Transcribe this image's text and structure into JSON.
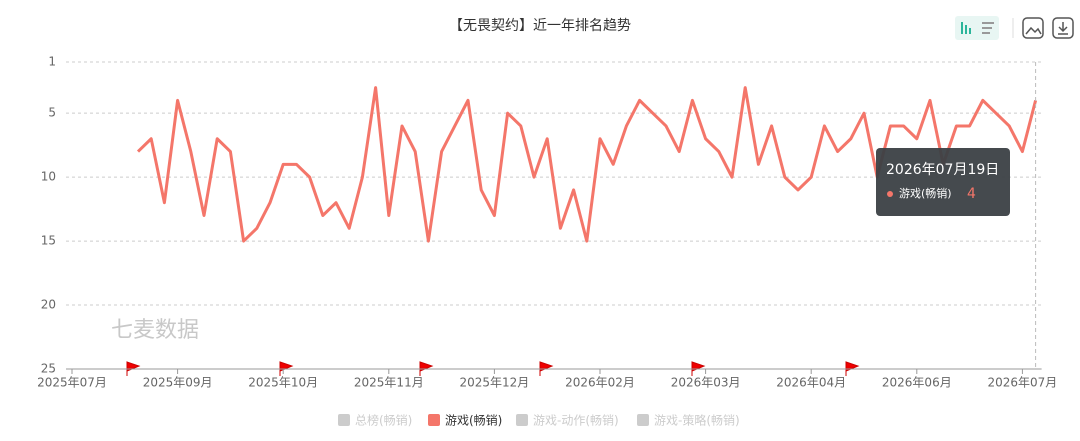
{
  "chart_data": {
    "type": "line",
    "title": "【无畏契约】近一年排名趋势",
    "x": [
      "2025年07月19日",
      "2025年07月24日",
      "2025年07月29日",
      "2025年08月03日",
      "2025年08月08日",
      "2025年08月13日",
      "2025年08月18日",
      "2025年08月23日",
      "2025年08月28日",
      "2025年09月02日",
      "2025年09月07日",
      "2025年09月12日",
      "2025年09月17日",
      "2025年09月22日",
      "2025年09月27日",
      "2025年10月02日",
      "2025年10月07日",
      "2025年10月12日",
      "2025年10月17日",
      "2025年10月22日",
      "2025年10月27日",
      "2025年11月01日",
      "2025年11月06日",
      "2025年11月11日",
      "2025年11月16日",
      "2025年11月21日",
      "2025年11月26日",
      "2025年12月01日",
      "2025年12月06日",
      "2025年12月11日",
      "2025年12月16日",
      "2025年12月21日",
      "2025年12月26日",
      "2025年12月31日",
      "2026年01月05日",
      "2026年01月10日",
      "2026年01月15日",
      "2026年01月20日",
      "2026年01月25日",
      "2026年01月30日",
      "2026年02月04日",
      "2026年02月09日",
      "2026年02月14日",
      "2026年02月19日",
      "2026年02月24日",
      "2026年03月01日",
      "2026年03月06日",
      "2026年03月11日",
      "2026年03月16日",
      "2026年03月21日",
      "2026年03月26日",
      "2026年03月31日",
      "2026年04月05日",
      "2026年04月10日",
      "2026年04月15日",
      "2026年04月20日",
      "2026年04月25日",
      "2026年04月30日",
      "2026年05月05日",
      "2026年05月10日",
      "2026年05月15日",
      "2026年05月20日",
      "2026年05月25日",
      "2026年05月30日",
      "2026年06月04日",
      "2026年06月09日",
      "2026年06月14日",
      "2026年06月19日",
      "2026年06月24日",
      "2026年06月29日",
      "2026年07月04日",
      "2026年07月09日",
      "2026年07月14日",
      "2026年07月19日"
    ],
    "series": [
      {
        "name": "游戏(畅销)",
        "color": "#f4766a",
        "values": [
          null,
          null,
          null,
          null,
          null,
          8,
          7,
          12,
          4,
          8,
          13,
          7,
          8,
          15,
          14,
          12,
          9,
          9,
          10,
          13,
          12,
          14,
          10,
          3,
          13,
          6,
          8,
          15,
          8,
          6,
          4,
          11,
          13,
          5,
          6,
          10,
          7,
          14,
          11,
          15,
          7,
          9,
          6,
          4,
          5,
          6,
          8,
          4,
          7,
          8,
          10,
          3,
          9,
          6,
          10,
          11,
          10,
          6,
          8,
          7,
          5,
          10,
          6,
          6,
          7,
          4,
          9,
          6,
          6,
          4,
          5,
          6,
          8,
          4
        ]
      }
    ],
    "legend_items": [
      {
        "name": "总榜(畅销)",
        "color": "#cccccc"
      },
      {
        "name": "游戏(畅销)",
        "color": "#f4766a"
      },
      {
        "name": "游戏-动作(畅销)",
        "color": "#cccccc"
      },
      {
        "name": "游戏-策略(畅销)",
        "color": "#cccccc"
      }
    ],
    "ylim": [
      1,
      25
    ],
    "inverse": true,
    "yticks": [
      1,
      5,
      10,
      15,
      20,
      25
    ],
    "grid": true,
    "xticks": [
      {
        "value": "2025年07月19日",
        "label": "2025年07月"
      },
      {
        "value": "2025年08月28日",
        "label": "2025年09月"
      },
      {
        "value": "2025年10月07日",
        "label": "2025年10月"
      },
      {
        "value": "2025年11月16日",
        "label": "2025年11月"
      },
      {
        "value": "2025年12月26日",
        "label": "2025年12月"
      },
      {
        "value": "2026年02月04日",
        "label": "2026年02月"
      },
      {
        "value": "2026年03月16日",
        "label": "2026年03月"
      },
      {
        "value": "2026年04月25日",
        "label": "2026年04月"
      },
      {
        "value": "2026年06月04日",
        "label": "2026年06月"
      },
      {
        "value": "2026年07月14日",
        "label": "2026年07月"
      }
    ],
    "watermark": "七麦数据",
    "tooltip_index": 73
  }
}
